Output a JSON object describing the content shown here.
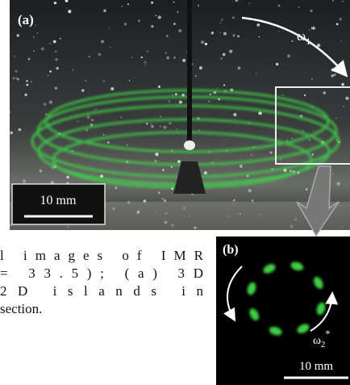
{
  "panel_a": {
    "label": "(a)",
    "omega": {
      "symbol": "ω",
      "sub": "1",
      "sup": "*"
    },
    "scale": "10 mm"
  },
  "panel_b": {
    "label": "(b)",
    "omega": {
      "symbol": "ω",
      "sub": "2",
      "sup": "*"
    },
    "scale": "10 mm"
  },
  "caption": {
    "lines": [
      "l images of IMR",
      "= 33.5); (a) 3D",
      "2D islands in",
      "section."
    ]
  }
}
